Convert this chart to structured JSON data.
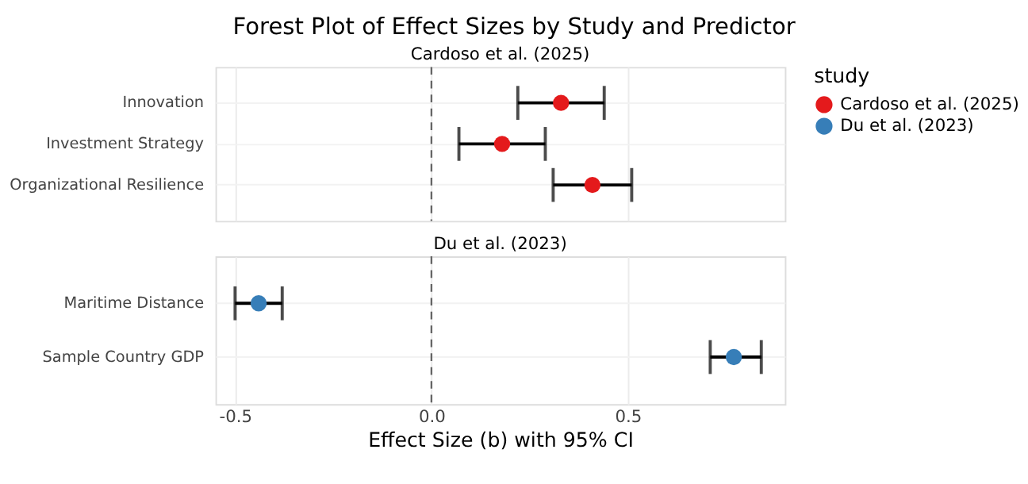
{
  "chart_data": [
    {
      "type": "scatter",
      "title": "Forest Plot of Effect Sizes by Study and Predictor",
      "subtitle": "Cardoso et al. (2025)",
      "orientation": "horizontal",
      "categories": [
        "Innovation",
        "Investment Strategy",
        "Organizational Resilience"
      ],
      "series": [
        {
          "name": "Cardoso et al. (2025)",
          "color": "#e41a1c",
          "values": [
            0.33,
            0.18,
            0.41
          ],
          "errors": [
            [
              0.22,
              0.44
            ],
            [
              0.07,
              0.29
            ],
            [
              0.31,
              0.51
            ]
          ]
        }
      ],
      "xlim": [
        -0.55,
        0.9
      ],
      "xticks": [
        -0.5,
        0,
        0.5
      ],
      "tick_labels": "y",
      "grid": true,
      "legend": "right",
      "legend_title": "study",
      "marker": "circle",
      "ref_lines": [
        {
          "axis": "x",
          "value": 0,
          "line_style": "dashed",
          "color": "#666666"
        }
      ]
    },
    {
      "type": "scatter",
      "subtitle": "Du et al. (2023)",
      "orientation": "horizontal",
      "categories": [
        "Maritime Distance",
        "Sample Country GDP"
      ],
      "series": [
        {
          "name": "Du et al. (2023)",
          "color": "#377eb8",
          "values": [
            -0.44,
            0.77
          ],
          "errors": [
            [
              -0.5,
              -0.38
            ],
            [
              0.71,
              0.84
            ]
          ]
        }
      ],
      "xlim": [
        -0.55,
        0.9
      ],
      "xticks": [
        -0.5,
        {
          "value": 0,
          "label": "0.0"
        },
        0.5
      ],
      "xlabel": "Effect Size (b) with 95% CI",
      "grid": true,
      "legend": "right",
      "marker": "circle",
      "ref_lines": [
        {
          "axis": "x",
          "value": 0,
          "line_style": "dashed",
          "color": "#666666"
        }
      ]
    }
  ]
}
